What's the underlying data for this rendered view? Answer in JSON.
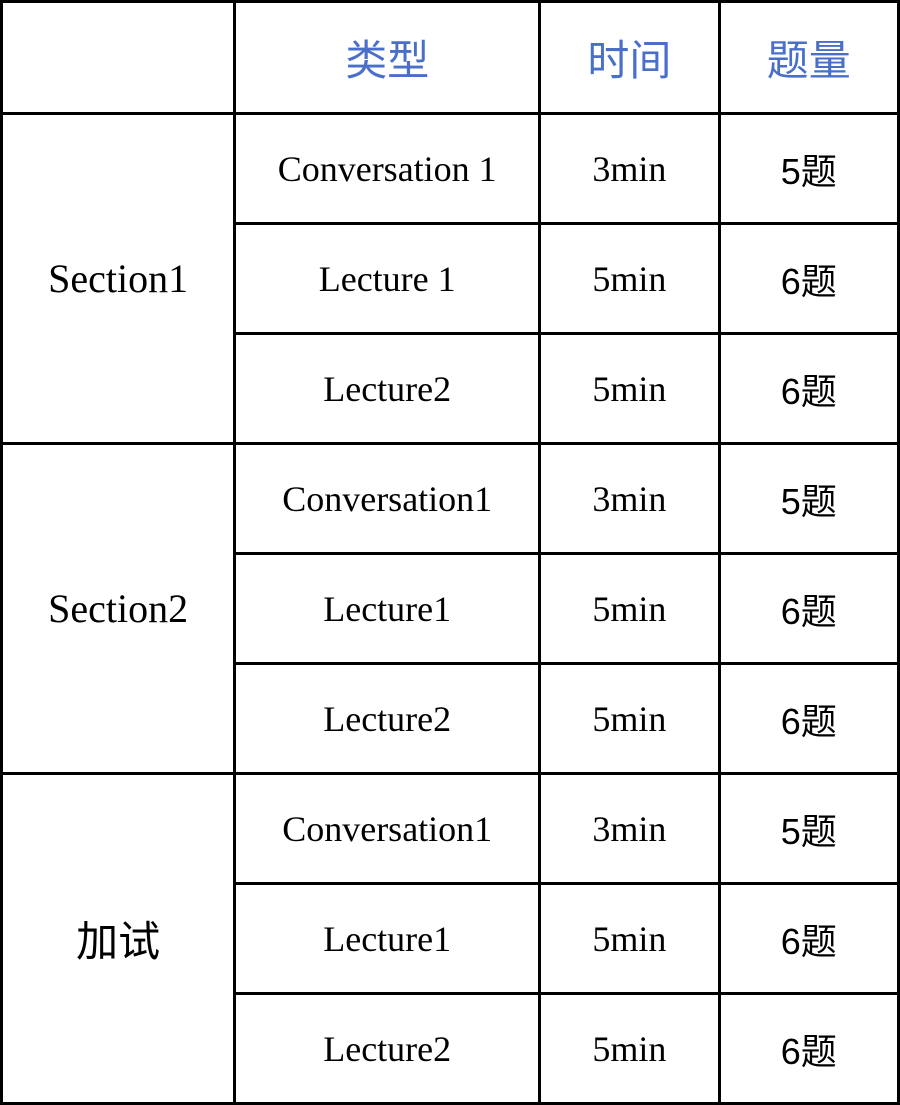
{
  "table": {
    "type": "table",
    "columns": [
      {
        "key": "section",
        "header": "",
        "width_pct": 26,
        "align": "center"
      },
      {
        "key": "type",
        "header": "类型",
        "width_pct": 34,
        "align": "center"
      },
      {
        "key": "time",
        "header": "时间",
        "width_pct": 20,
        "align": "center"
      },
      {
        "key": "count",
        "header": "题量",
        "width_pct": 20,
        "align": "center"
      }
    ],
    "header_color": "#4a6fc9",
    "header_fontsize": 42,
    "body_fontsize": 36,
    "section_fontsize": 40,
    "border_color": "#000000",
    "border_width": 3,
    "background_color": "#ffffff",
    "text_color": "#000000",
    "sections": [
      {
        "label": "Section1",
        "rows": [
          {
            "type": "Conversation 1",
            "time": "3min",
            "count": "5题"
          },
          {
            "type": "Lecture 1",
            "time": "5min",
            "count": "6题"
          },
          {
            "type": "Lecture2",
            "time": "5min",
            "count": "6题"
          }
        ]
      },
      {
        "label": "Section2",
        "rows": [
          {
            "type": "Conversation1",
            "time": "3min",
            "count": "5题"
          },
          {
            "type": "Lecture1",
            "time": "5min",
            "count": "6题"
          },
          {
            "type": "Lecture2",
            "time": "5min",
            "count": "6题"
          }
        ]
      },
      {
        "label": "加试",
        "rows": [
          {
            "type": "Conversation1",
            "time": "3min",
            "count": "5题"
          },
          {
            "type": "Lecture1",
            "time": "5min",
            "count": "6题"
          },
          {
            "type": "Lecture2",
            "time": "5min",
            "count": "6题"
          }
        ]
      }
    ]
  }
}
